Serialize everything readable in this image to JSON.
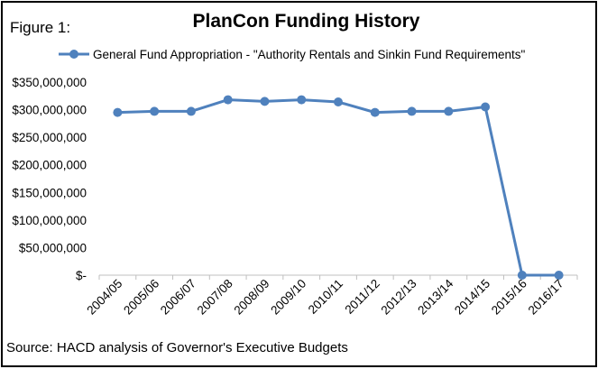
{
  "figure_label": "Figure 1:",
  "source_note": "Source: HACD analysis of Governor's Executive Budgets",
  "chart_data": {
    "type": "line",
    "title": "PlanCon Funding History",
    "xlabel": "",
    "ylabel": "",
    "categories": [
      "2004/05",
      "2005/06",
      "2006/07",
      "2007/08",
      "2008/09",
      "2009/10",
      "2010/11",
      "2011/12",
      "2012/13",
      "2013/14",
      "2014/15",
      "2015/16",
      "2016/17"
    ],
    "series": [
      {
        "name": "General Fund Appropriation - \"Authority Rentals and Sinkin Fund Requirements\"",
        "values": [
          295000000,
          297000000,
          297000000,
          318000000,
          315000000,
          318000000,
          314000000,
          295000000,
          297000000,
          297000000,
          305000000,
          0,
          0
        ],
        "color": "#4f81bd"
      }
    ],
    "ylim": [
      0,
      350000000
    ],
    "yticks": [
      0,
      50000000,
      100000000,
      150000000,
      200000000,
      250000000,
      300000000,
      350000000
    ],
    "ytick_labels": [
      "$-",
      "$50,000,000",
      "$100,000,000",
      "$150,000,000",
      "$200,000,000",
      "$250,000,000",
      "$300,000,000",
      "$350,000,000"
    ],
    "grid": false,
    "legend_position": "top"
  }
}
